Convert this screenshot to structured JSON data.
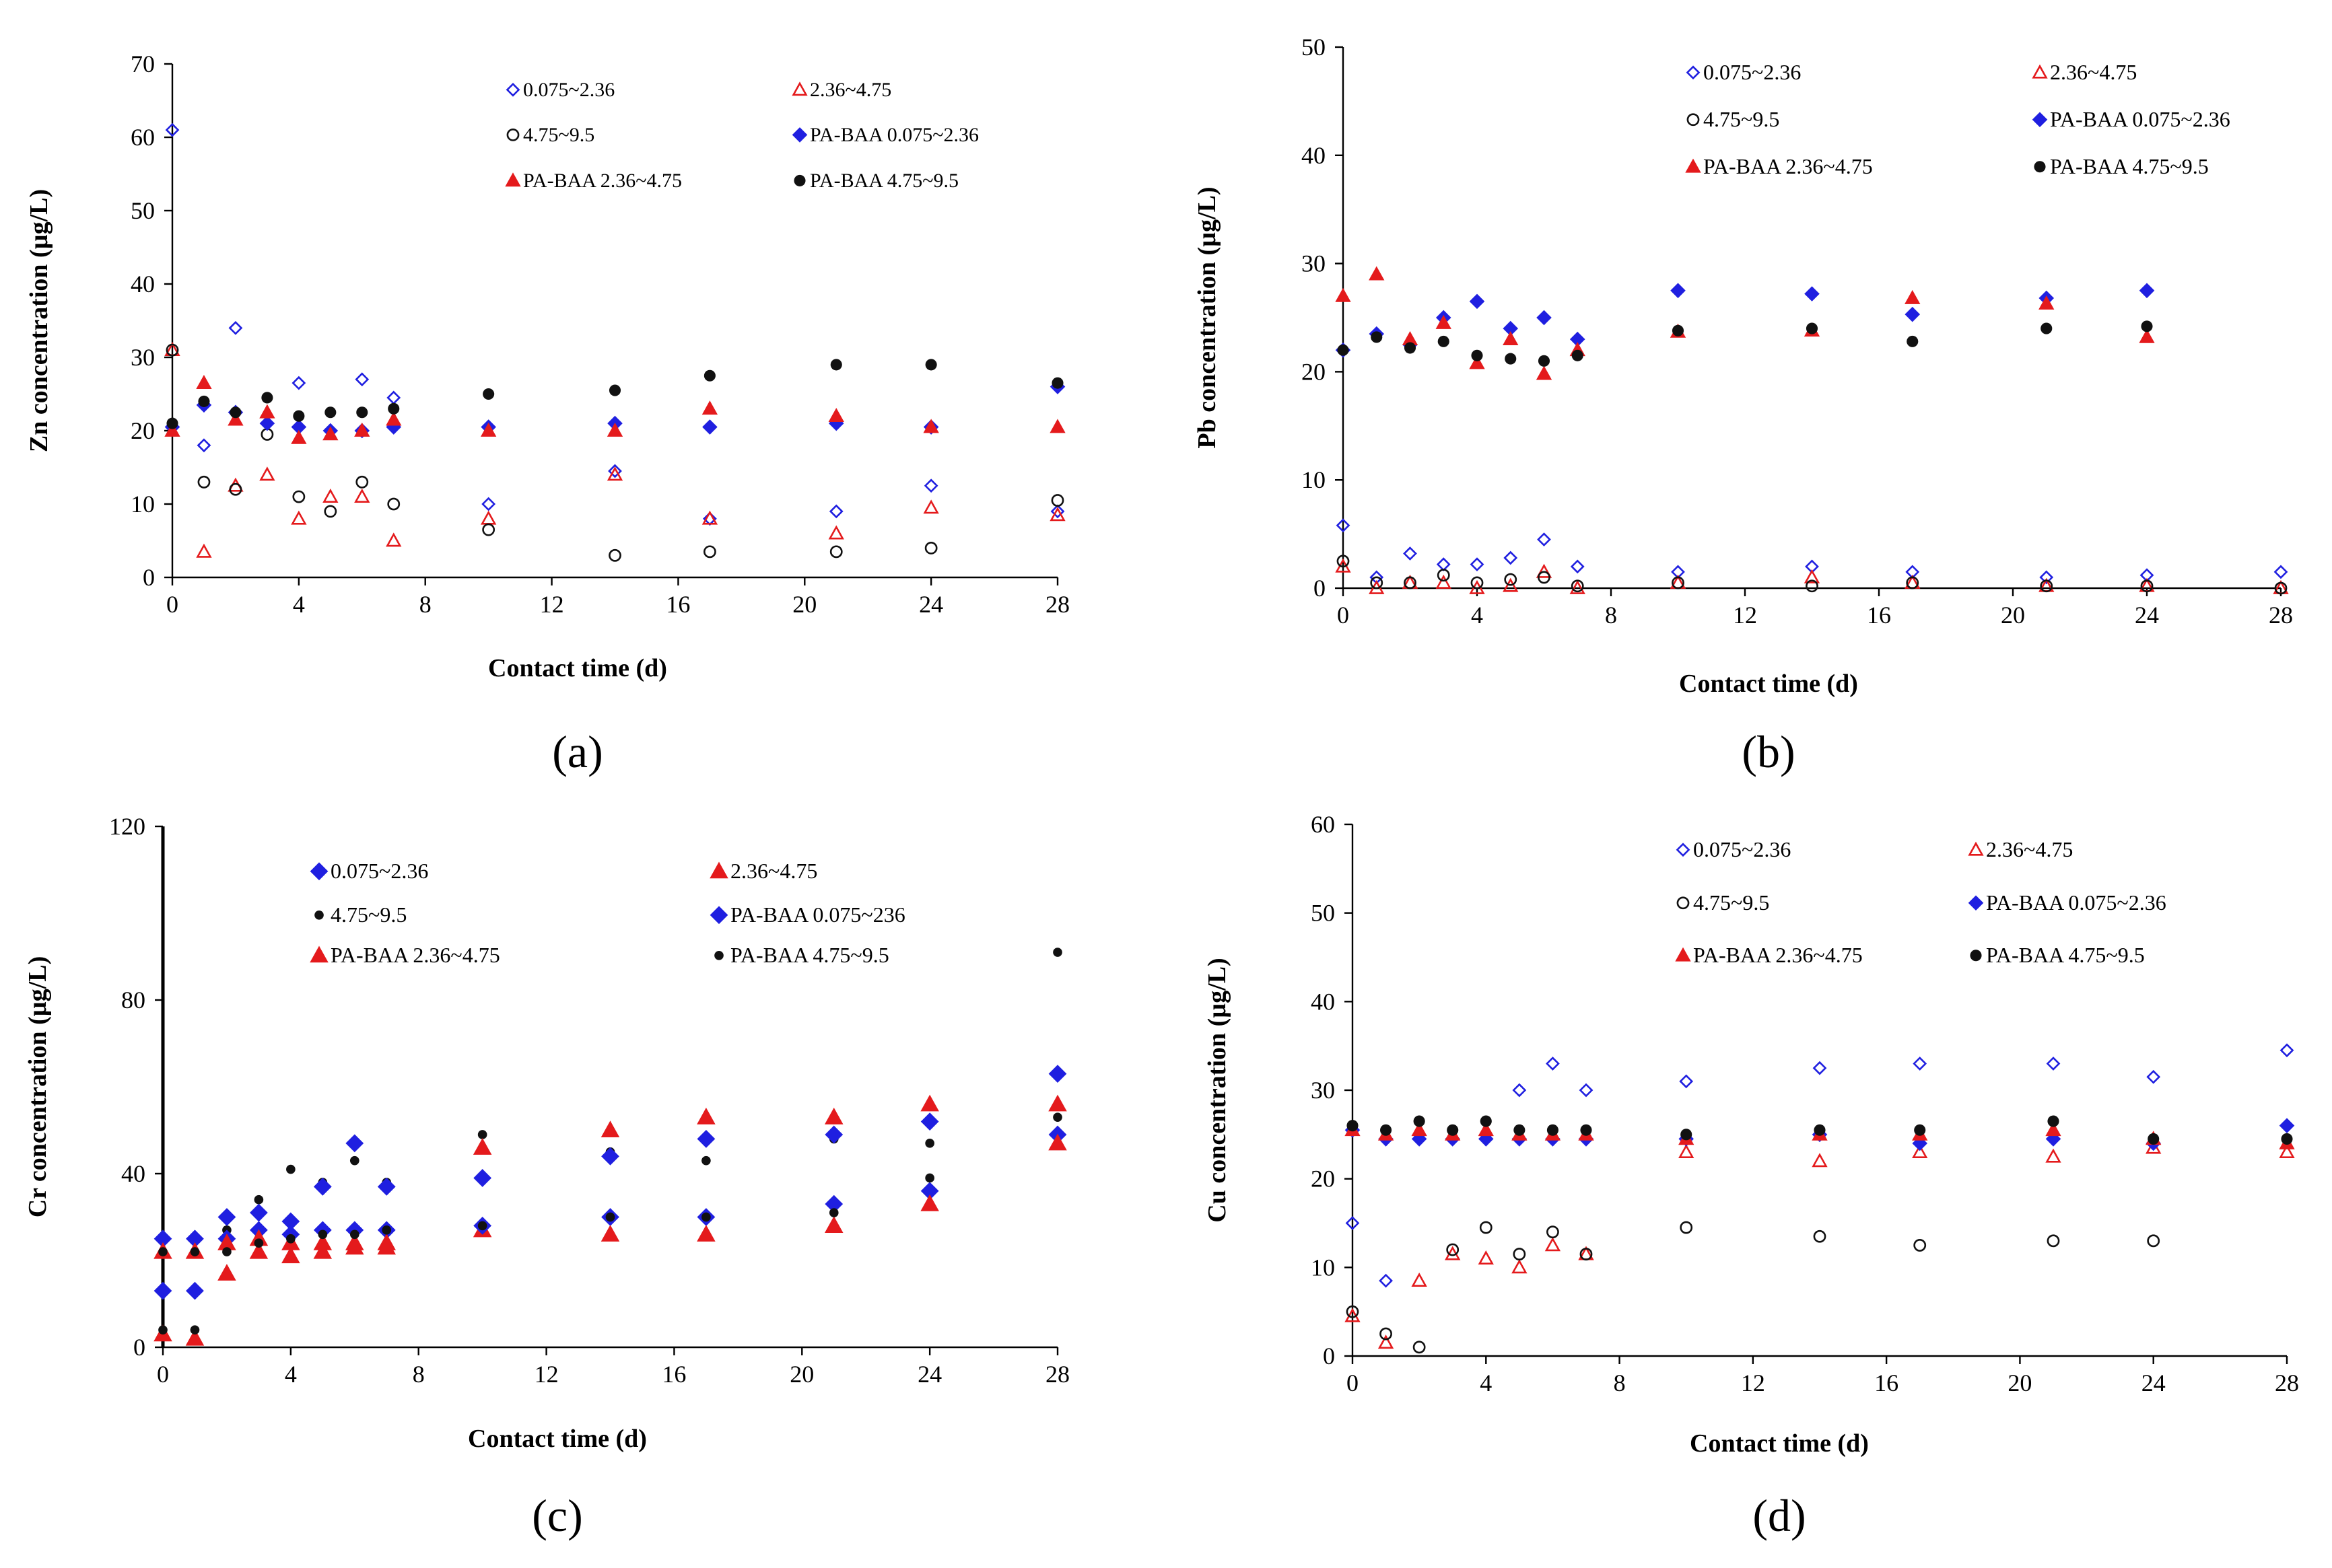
{
  "chart_data": [
    {
      "panel": "(a)",
      "type": "scatter",
      "title": "",
      "xlabel": "Contact time (d)",
      "ylabel": "Zn concentration (µg/L)",
      "xlim": [
        0,
        28
      ],
      "ylim": [
        0,
        70
      ],
      "xticks": [
        0,
        4,
        8,
        12,
        16,
        20,
        24,
        28
      ],
      "yticks": [
        0,
        10,
        20,
        30,
        40,
        50,
        60,
        70
      ],
      "grid": false,
      "legend_position": "top-right",
      "series": [
        {
          "name": "0.075~2.36",
          "marker": "diamond-open",
          "color": "#1f1fe0",
          "x": [
            0,
            1,
            2,
            4,
            6,
            7,
            10,
            14,
            17,
            21,
            24,
            28
          ],
          "y": [
            61,
            18,
            34,
            26.5,
            27,
            24.5,
            10,
            14.5,
            8,
            9,
            12.5,
            9
          ]
        },
        {
          "name": "2.36~4.75",
          "marker": "triangle-open",
          "color": "#e41a1c",
          "x": [
            0,
            1,
            2,
            3,
            4,
            5,
            6,
            7,
            10,
            14,
            17,
            21,
            24,
            28
          ],
          "y": [
            31,
            3.5,
            12.5,
            14,
            8,
            11,
            11,
            5,
            8,
            14,
            8,
            6,
            9.5,
            8.5
          ]
        },
        {
          "name": "4.75~9.5",
          "marker": "circle-open",
          "color": "#111111",
          "x": [
            0,
            1,
            2,
            3,
            4,
            5,
            6,
            7,
            10,
            14,
            17,
            21,
            24,
            28
          ],
          "y": [
            31,
            13,
            12,
            19.5,
            11,
            9,
            13,
            10,
            6.5,
            3,
            3.5,
            3.5,
            4,
            10.5
          ]
        },
        {
          "name": "PA-BAA 0.075~2.36",
          "marker": "diamond-filled",
          "color": "#1f1fe0",
          "x": [
            0,
            1,
            2,
            3,
            4,
            5,
            6,
            7,
            10,
            14,
            17,
            21,
            24,
            28
          ],
          "y": [
            20.5,
            23.5,
            22.5,
            21,
            20.5,
            20,
            20,
            20.5,
            20.5,
            21,
            20.5,
            21,
            20.5,
            26
          ]
        },
        {
          "name": "PA-BAA 2.36~4.75",
          "marker": "triangle-filled",
          "color": "#e41a1c",
          "x": [
            0,
            1,
            2,
            3,
            4,
            5,
            6,
            7,
            10,
            14,
            17,
            21,
            24,
            28
          ],
          "y": [
            20,
            26.5,
            21.5,
            22.5,
            19,
            19.5,
            20,
            21.5,
            20,
            20,
            23,
            22,
            20.5,
            20.5
          ]
        },
        {
          "name": "PA-BAA 4.75~9.5",
          "marker": "circle-filled",
          "color": "#111111",
          "x": [
            0,
            1,
            2,
            3,
            4,
            5,
            6,
            7,
            10,
            14,
            17,
            21,
            24,
            28
          ],
          "y": [
            21,
            24,
            22.5,
            24.5,
            22,
            22.5,
            22.5,
            23,
            25,
            25.5,
            27.5,
            29,
            29,
            26.5
          ]
        }
      ]
    },
    {
      "panel": "(b)",
      "type": "scatter",
      "title": "",
      "xlabel": "Contact time (d)",
      "ylabel": "Pb concentration (µg/L)",
      "xlim": [
        0,
        28
      ],
      "ylim": [
        0,
        50
      ],
      "xticks": [
        0,
        4,
        8,
        12,
        16,
        20,
        24,
        28
      ],
      "yticks": [
        0,
        10,
        20,
        30,
        40,
        50
      ],
      "grid": false,
      "legend_position": "top-right",
      "series": [
        {
          "name": "0.075~2.36",
          "marker": "diamond-open",
          "color": "#1f1fe0",
          "x": [
            0,
            1,
            2,
            3,
            4,
            5,
            6,
            7,
            10,
            14,
            17,
            21,
            24,
            28
          ],
          "y": [
            5.8,
            1,
            3.2,
            2.2,
            2.2,
            2.8,
            4.5,
            2,
            1.5,
            2,
            1.5,
            1,
            1.2,
            1.5
          ]
        },
        {
          "name": "2.36~4.75",
          "marker": "triangle-open",
          "color": "#e41a1c",
          "x": [
            0,
            1,
            2,
            3,
            4,
            5,
            6,
            7,
            10,
            14,
            17,
            21,
            24,
            28
          ],
          "y": [
            2,
            0,
            0.5,
            0.5,
            0,
            0.2,
            1.5,
            0,
            0.5,
            1,
            0.5,
            0.2,
            0.2,
            0
          ]
        },
        {
          "name": "4.75~9.5",
          "marker": "circle-open",
          "color": "#111111",
          "x": [
            0,
            1,
            2,
            3,
            4,
            5,
            6,
            7,
            10,
            14,
            17,
            21,
            24,
            28
          ],
          "y": [
            2.5,
            0.5,
            0.5,
            1.2,
            0.5,
            0.8,
            1,
            0.2,
            0.5,
            0.2,
            0.5,
            0.2,
            0.2,
            0
          ]
        },
        {
          "name": "PA-BAA 0.075~2.36",
          "marker": "diamond-filled",
          "color": "#1f1fe0",
          "x": [
            0,
            1,
            2,
            3,
            4,
            5,
            6,
            7,
            10,
            14,
            17,
            21,
            24
          ],
          "y": [
            22,
            23.5,
            22.5,
            25,
            26.5,
            24,
            25,
            23,
            27.5,
            27.2,
            25.3,
            26.8,
            27.5
          ]
        },
        {
          "name": "PA-BAA 2.36~4.75",
          "marker": "triangle-filled",
          "color": "#e41a1c",
          "x": [
            0,
            1,
            2,
            3,
            4,
            5,
            6,
            7,
            10,
            14,
            17,
            21,
            24
          ],
          "y": [
            27,
            29,
            23,
            24.5,
            20.8,
            23,
            19.8,
            22,
            23.7,
            23.8,
            26.8,
            26.3,
            23.2
          ]
        },
        {
          "name": "PA-BAA 4.75~9.5",
          "marker": "circle-filled",
          "color": "#111111",
          "x": [
            0,
            1,
            2,
            3,
            4,
            5,
            6,
            7,
            10,
            14,
            17,
            21,
            24
          ],
          "y": [
            22,
            23.2,
            22.2,
            22.8,
            21.5,
            21.2,
            21,
            21.5,
            23.8,
            24,
            22.8,
            24,
            24.2
          ]
        }
      ]
    },
    {
      "panel": "(c)",
      "type": "scatter",
      "title": "",
      "xlabel": "Contact time (d)",
      "ylabel": "Cr concentration (µg/L)",
      "xlim": [
        0,
        28
      ],
      "ylim": [
        0,
        120
      ],
      "xticks": [
        0,
        4,
        8,
        12,
        16,
        20,
        24,
        28
      ],
      "yticks": [
        0,
        40,
        80,
        120
      ],
      "grid": false,
      "legend_position": "top-right",
      "series": [
        {
          "name": "0.075~2.36",
          "marker": "diamond-filled",
          "color": "#1f1fe0",
          "x": [
            0,
            1,
            2,
            3,
            4,
            5,
            6,
            7,
            10,
            14,
            17,
            21,
            24,
            28
          ],
          "y": [
            13,
            13,
            30,
            27,
            29,
            27,
            27,
            27,
            39,
            30,
            30,
            33,
            36,
            49
          ]
        },
        {
          "name": "2.36~4.75",
          "marker": "triangle-filled",
          "color": "#e41a1c",
          "x": [
            0,
            1,
            2,
            3,
            4,
            5,
            6,
            7,
            10,
            14,
            17,
            21,
            24,
            28
          ],
          "y": [
            3,
            2,
            17,
            22,
            21,
            22,
            23,
            23,
            27,
            26,
            26,
            28,
            33,
            47
          ]
        },
        {
          "name": "4.75~9.5",
          "marker": "circle-small",
          "color": "#111111",
          "x": [
            0,
            1,
            2,
            3,
            4,
            5,
            6,
            7,
            10,
            14,
            17,
            21,
            24,
            28
          ],
          "y": [
            4,
            4,
            27,
            34,
            41,
            38,
            43,
            38,
            49,
            45,
            43,
            48,
            47,
            91
          ]
        },
        {
          "name": "PA-BAA 0.075~236",
          "marker": "diamond-filled",
          "color": "#1f1fe0",
          "x": [
            0,
            1,
            2,
            3,
            4,
            5,
            6,
            7,
            10,
            14,
            17,
            21,
            24,
            28
          ],
          "y": [
            25,
            25,
            25,
            31,
            26,
            37,
            47,
            37,
            28,
            44,
            48,
            49,
            52,
            63
          ]
        },
        {
          "name": "PA-BAA 2.36~4.75",
          "marker": "triangle-filled",
          "color": "#e41a1c",
          "x": [
            0,
            1,
            2,
            3,
            4,
            5,
            6,
            7,
            10,
            14,
            17,
            21,
            24,
            28
          ],
          "y": [
            22,
            22,
            24,
            25,
            24,
            24,
            24,
            24,
            46,
            50,
            53,
            53,
            56,
            56
          ]
        },
        {
          "name": "PA-BAA 4.75~9.5",
          "marker": "circle-small",
          "color": "#111111",
          "x": [
            0,
            1,
            2,
            3,
            4,
            5,
            6,
            7,
            10,
            14,
            17,
            21,
            24,
            28
          ],
          "y": [
            22,
            22,
            22,
            24,
            25,
            26,
            26,
            27,
            28,
            30,
            30,
            31,
            39,
            53
          ]
        }
      ]
    },
    {
      "panel": "(d)",
      "type": "scatter",
      "title": "",
      "xlabel": "Contact time (d)",
      "ylabel": "Cu concentration (µg/L)",
      "xlim": [
        0,
        28
      ],
      "ylim": [
        0,
        60
      ],
      "xticks": [
        0,
        4,
        8,
        12,
        16,
        20,
        24,
        28
      ],
      "yticks": [
        0,
        10,
        20,
        30,
        40,
        50,
        60
      ],
      "grid": false,
      "legend_position": "top-right",
      "series": [
        {
          "name": "0.075~2.36",
          "marker": "diamond-open",
          "color": "#1f1fe0",
          "x": [
            0,
            1,
            2,
            3,
            4,
            5,
            6,
            7,
            10,
            14,
            17,
            21,
            24,
            28
          ],
          "y": [
            15,
            8.5,
            25,
            24.5,
            25,
            30,
            33,
            30,
            31,
            32.5,
            33,
            33,
            31.5,
            34.5
          ]
        },
        {
          "name": "2.36~4.75",
          "marker": "triangle-open",
          "color": "#e41a1c",
          "x": [
            0,
            1,
            2,
            3,
            4,
            5,
            6,
            7,
            10,
            14,
            17,
            21,
            24,
            28
          ],
          "y": [
            4.5,
            1.5,
            8.5,
            11.5,
            11,
            10,
            12.5,
            11.5,
            23,
            22,
            23,
            22.5,
            23.5,
            23
          ]
        },
        {
          "name": "4.75~9.5",
          "marker": "circle-open",
          "color": "#111111",
          "x": [
            0,
            1,
            2,
            3,
            4,
            5,
            6,
            7,
            10,
            14,
            17,
            21,
            24
          ],
          "y": [
            5,
            2.5,
            1,
            12,
            14.5,
            11.5,
            14,
            11.5,
            14.5,
            13.5,
            12.5,
            13,
            13
          ]
        },
        {
          "name": "PA-BAA 0.075~2.36",
          "marker": "diamond-filled",
          "color": "#1f1fe0",
          "x": [
            0,
            1,
            2,
            3,
            4,
            5,
            6,
            7,
            10,
            14,
            17,
            21,
            24,
            28
          ],
          "y": [
            25.5,
            24.5,
            24.5,
            24.5,
            24.5,
            24.5,
            24.5,
            24.5,
            24.5,
            25,
            24,
            24.5,
            24,
            26
          ]
        },
        {
          "name": "PA-BAA 2.36~4.75",
          "marker": "triangle-filled",
          "color": "#e41a1c",
          "x": [
            0,
            1,
            2,
            3,
            4,
            5,
            6,
            7,
            10,
            14,
            17,
            21,
            24,
            28
          ],
          "y": [
            25.5,
            25,
            25.5,
            25,
            25.5,
            25,
            25,
            25,
            24.5,
            25,
            25,
            25.5,
            24.5,
            24
          ]
        },
        {
          "name": "PA-BAA 4.75~9.5",
          "marker": "circle-filled",
          "color": "#111111",
          "x": [
            0,
            1,
            2,
            3,
            4,
            5,
            6,
            7,
            10,
            14,
            17,
            21,
            24,
            28
          ],
          "y": [
            26,
            25.5,
            26.5,
            25.5,
            26.5,
            25.5,
            25.5,
            25.5,
            25,
            25.5,
            25.5,
            26.5,
            24.5,
            24.5
          ]
        }
      ]
    }
  ]
}
